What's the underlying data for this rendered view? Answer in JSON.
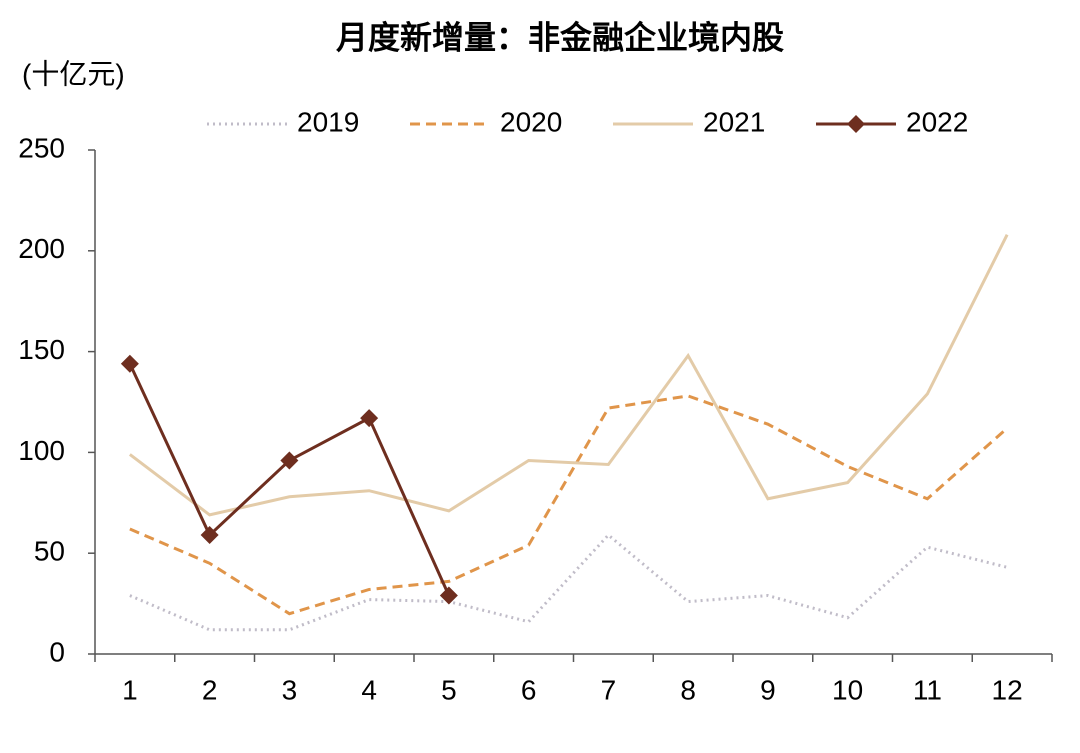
{
  "chart_data": {
    "type": "line",
    "title": "月度新增量：非金融企业境内股",
    "y_label": "(十亿元)",
    "categories": [
      "1",
      "2",
      "3",
      "4",
      "5",
      "6",
      "7",
      "8",
      "9",
      "10",
      "11",
      "12"
    ],
    "series": [
      {
        "name": "2019",
        "color": "#c0bcc8",
        "dash": "dotted",
        "values": [
          29,
          12,
          12,
          27,
          26,
          16,
          59,
          26,
          29,
          18,
          53,
          43
        ]
      },
      {
        "name": "2020",
        "color": "#e0954a",
        "dash": "dashed",
        "values": [
          62,
          45,
          20,
          32,
          36,
          54,
          122,
          128,
          114,
          93,
          77,
          112
        ]
      },
      {
        "name": "2021",
        "color": "#e3cba8",
        "dash": "solid",
        "values": [
          99,
          69,
          78,
          81,
          71,
          96,
          94,
          148,
          77,
          85,
          129,
          208
        ]
      },
      {
        "name": "2022",
        "color": "#6e2e1f",
        "dash": "solid",
        "marker": "diamond",
        "values": [
          144,
          59,
          96,
          117,
          29,
          null,
          null,
          null,
          null,
          null,
          null,
          null
        ]
      }
    ],
    "ylim": [
      0,
      250
    ],
    "yticks": [
      0,
      50,
      100,
      150,
      200,
      250
    ],
    "grid": false,
    "legend": "top"
  }
}
